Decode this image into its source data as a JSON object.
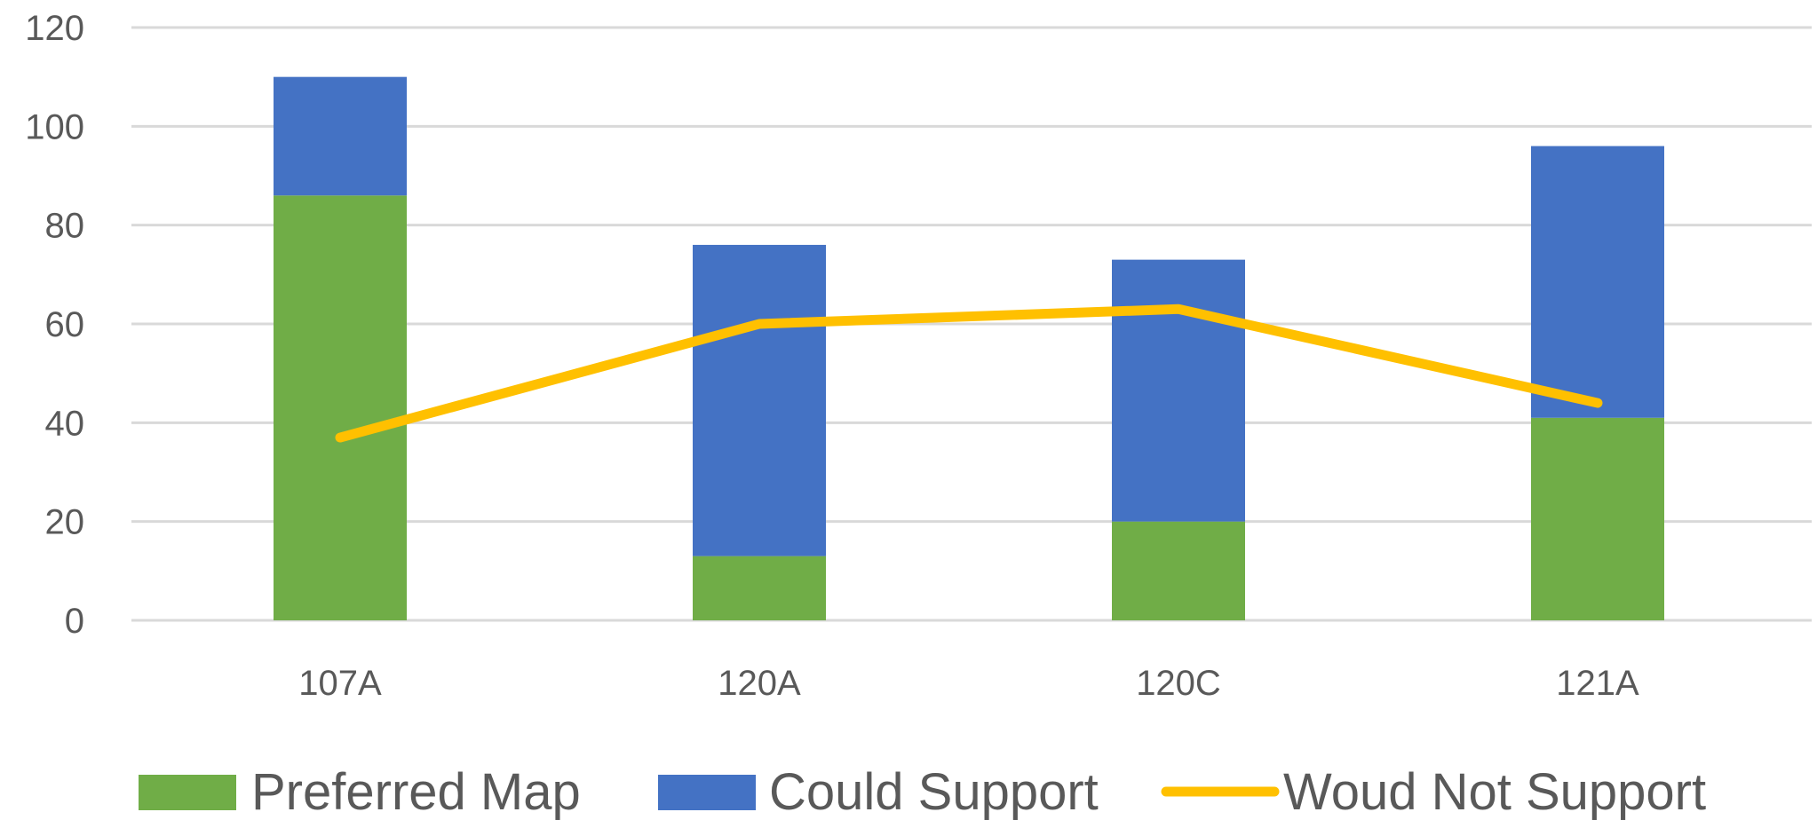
{
  "chart_data": {
    "type": "bar",
    "stacked": true,
    "categories": [
      "107A",
      "120A",
      "120C",
      "121A"
    ],
    "series": [
      {
        "name": "Preferred Map",
        "type": "bar",
        "color": "#70ad47",
        "values": [
          86,
          13,
          20,
          41
        ]
      },
      {
        "name": "Could Support",
        "type": "bar",
        "color": "#4472c4",
        "values": [
          24,
          63,
          53,
          55
        ]
      },
      {
        "name": "Woud Not Support",
        "type": "line",
        "color": "#ffc000",
        "values": [
          37,
          60,
          63,
          44
        ]
      }
    ],
    "ylim": [
      0,
      120
    ],
    "yticks": [
      "0",
      "20",
      "40",
      "60",
      "80",
      "100",
      "120"
    ],
    "grid": true,
    "gridline_color": "#d9d9d9",
    "legend_position": "bottom",
    "title": "",
    "xlabel": "",
    "ylabel": ""
  }
}
